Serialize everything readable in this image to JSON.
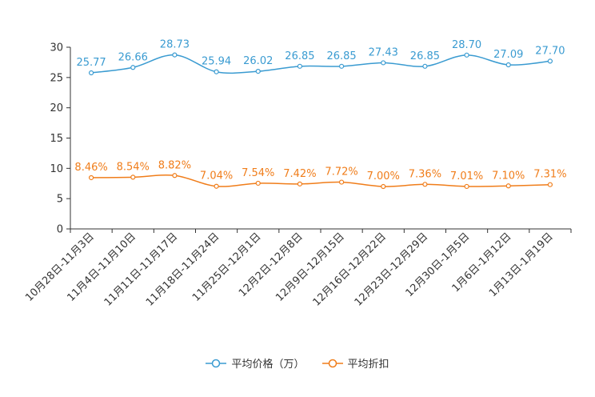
{
  "chart_data": {
    "type": "line",
    "title": "",
    "xlabel": "",
    "ylabel": "",
    "ylim": [
      0,
      30
    ],
    "yticks": [
      0,
      5,
      10,
      15,
      20,
      25,
      30
    ],
    "grid": false,
    "legend_position": "bottom",
    "categories": [
      "10月28日-11月3日",
      "11月4日-11月10日",
      "11月11日-11月17日",
      "11月18日-11月24日",
      "11月25日-12月1日",
      "12月2日-12月8日",
      "12月9日-12月15日",
      "12月16日-12月22日",
      "12月23日-12月29日",
      "12月30日-1月5日",
      "1月6日-1月12日",
      "1月13日-1月19日"
    ],
    "series": [
      {
        "name": "平均价格（万）",
        "color": "#3a9bd1",
        "values": [
          25.77,
          26.66,
          28.73,
          25.94,
          26.02,
          26.85,
          26.85,
          27.43,
          26.85,
          28.7,
          27.09,
          27.7
        ],
        "labels": [
          "25.77",
          "26.66",
          "28.73",
          "25.94",
          "26.02",
          "26.85",
          "26.85",
          "27.43",
          "26.85",
          "28.70",
          "27.09",
          "27.70"
        ]
      },
      {
        "name": "平均折扣",
        "color": "#f07d1a",
        "values": [
          8.46,
          8.54,
          8.82,
          7.04,
          7.54,
          7.42,
          7.72,
          7.0,
          7.36,
          7.01,
          7.1,
          7.31
        ],
        "labels": [
          "8.46%",
          "8.54%",
          "8.82%",
          "7.04%",
          "7.54%",
          "7.42%",
          "7.72%",
          "7.00%",
          "7.36%",
          "7.01%",
          "7.10%",
          "7.31%"
        ]
      }
    ]
  }
}
